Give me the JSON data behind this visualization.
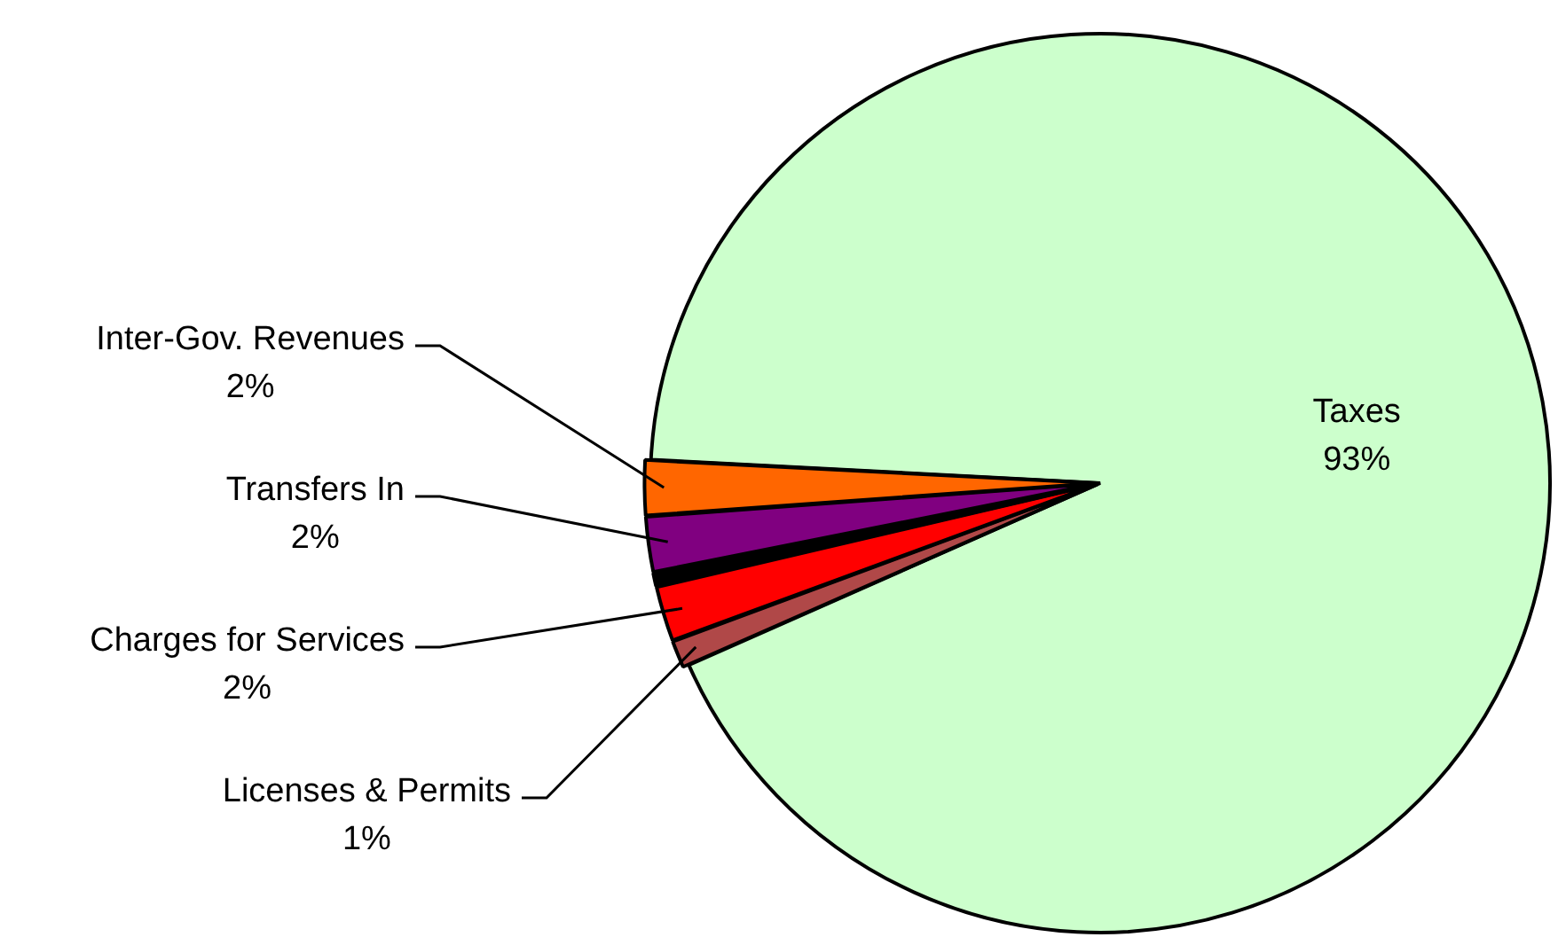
{
  "chart_data": {
    "type": "pie",
    "categories": [
      "Taxes",
      "Licenses & Permits",
      "Charges for Services",
      null,
      "Transfers In",
      "Inter-Gov. Revenues"
    ],
    "values": [
      93,
      1,
      2,
      0.5,
      2,
      2
    ],
    "value_labels": [
      "93%",
      "1%",
      "2%",
      null,
      "2%",
      "2%"
    ],
    "colors": [
      "#ccffcc",
      "#b04848",
      "#ff0000",
      "#000000",
      "#800080",
      "#ff6600"
    ],
    "legend": false
  }
}
